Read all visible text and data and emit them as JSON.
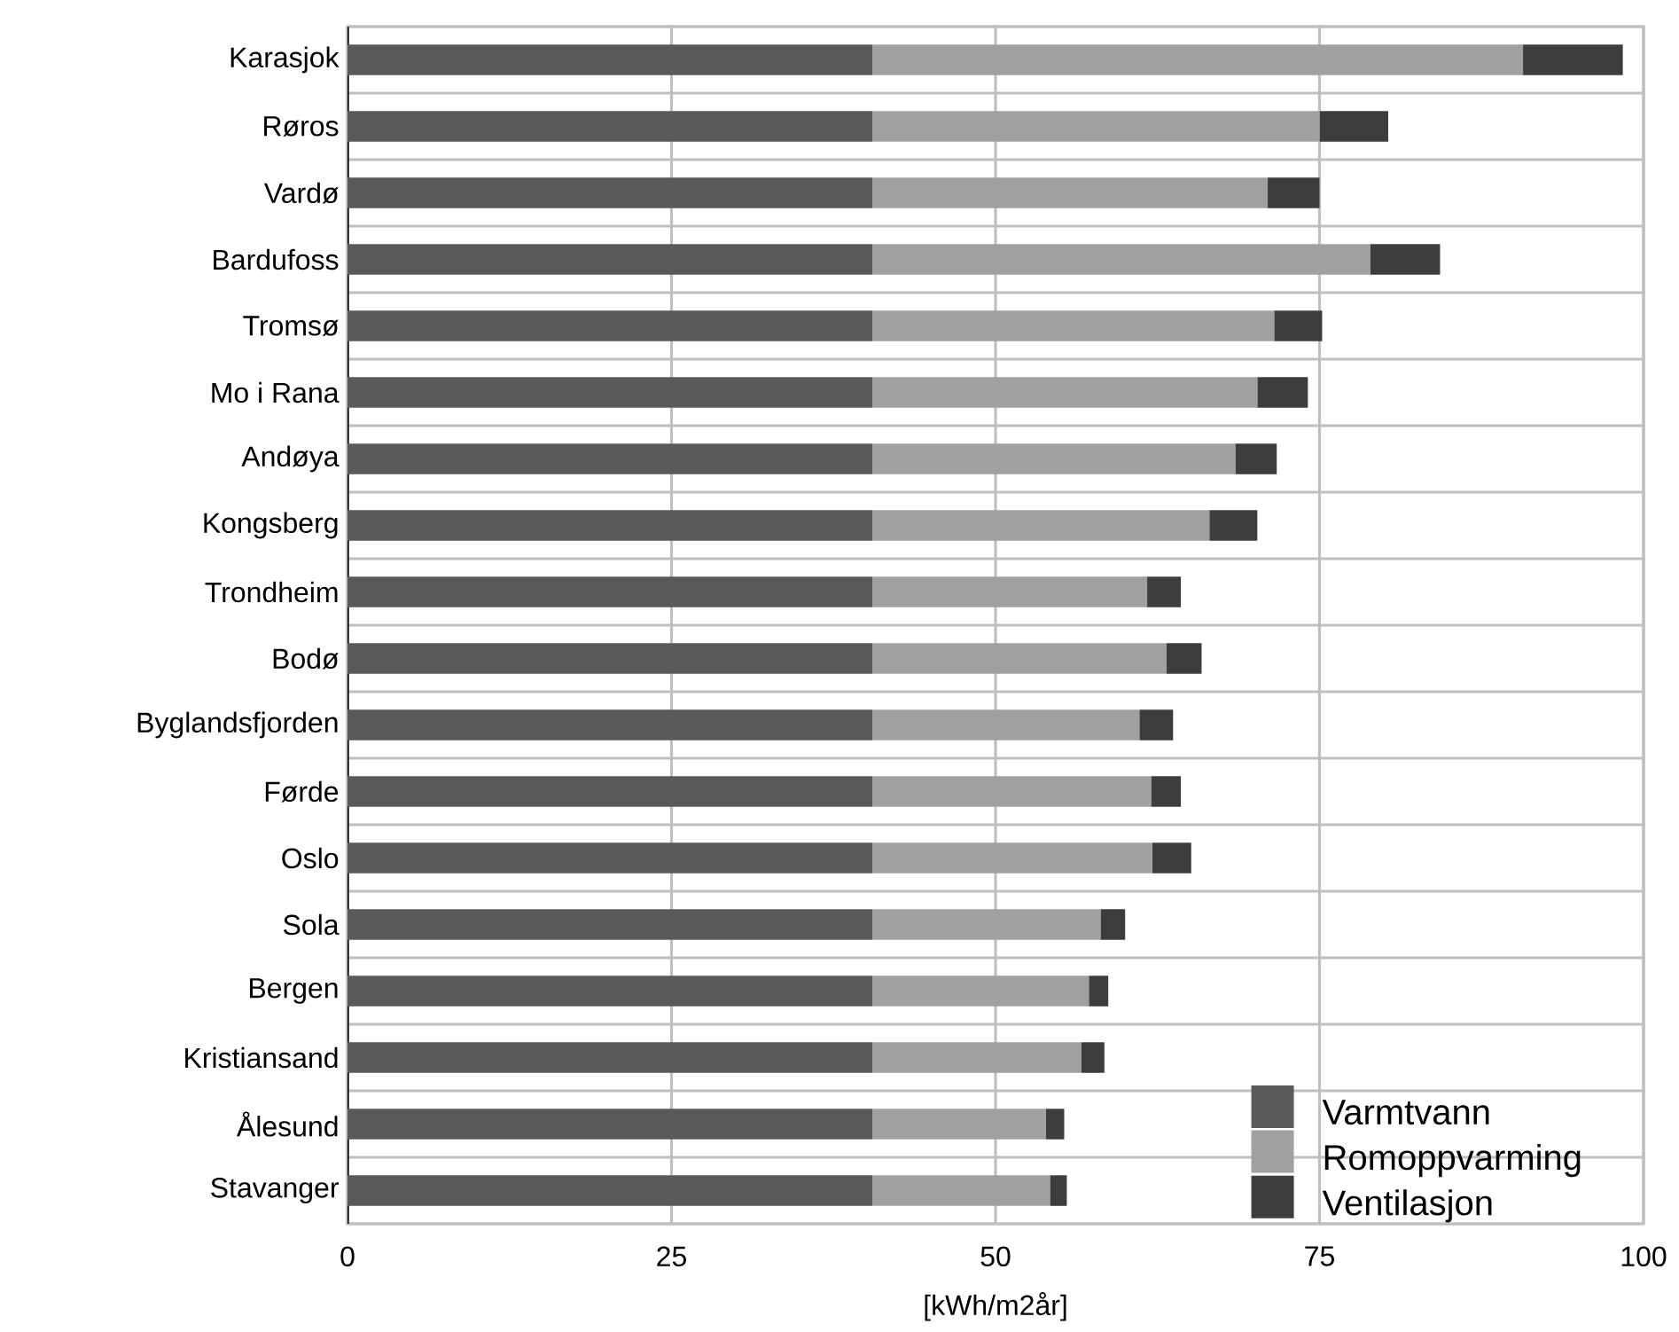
{
  "chart_data": {
    "type": "bar",
    "orientation": "horizontal",
    "stacked": true,
    "xlabel": "[kWh/m2år]",
    "categories": [
      "Karasjok",
      "Røros",
      "Vardø",
      "Bardufoss",
      "Tromsø",
      "Mo i Rana",
      "Andøya",
      "Kongsberg",
      "Trondheim",
      "Bodø",
      "Byglandsfjorden",
      "Førde",
      "Oslo",
      "Sola",
      "Bergen",
      "Kristiansand",
      "Ålesund",
      "Stavanger"
    ],
    "series": [
      {
        "name": "Varmtvann",
        "color": "#5a5a5a",
        "values": [
          40.5,
          40.5,
          40.5,
          40.5,
          40.5,
          40.5,
          40.5,
          40.5,
          40.5,
          40.5,
          40.5,
          40.5,
          40.5,
          40.5,
          40.5,
          40.5,
          40.5,
          40.5
        ]
      },
      {
        "name": "Romoppvarming",
        "color": "#a0a0a0",
        "values": [
          50.2,
          34.5,
          30.5,
          38.4,
          31.0,
          29.7,
          28.0,
          26.0,
          21.2,
          22.7,
          20.6,
          21.5,
          21.6,
          17.6,
          16.7,
          16.1,
          13.4,
          13.7
        ]
      },
      {
        "name": "Ventilasjon",
        "color": "#3c3e3e",
        "values": [
          7.7,
          5.3,
          4.0,
          5.4,
          3.7,
          3.9,
          3.2,
          3.7,
          2.6,
          2.7,
          2.6,
          2.3,
          3.0,
          1.9,
          1.5,
          1.8,
          1.4,
          1.3
        ]
      }
    ],
    "xlim": [
      0,
      100
    ],
    "xticks": [
      0,
      25,
      50,
      75,
      100
    ],
    "grid": true,
    "legend": "bottom right"
  }
}
